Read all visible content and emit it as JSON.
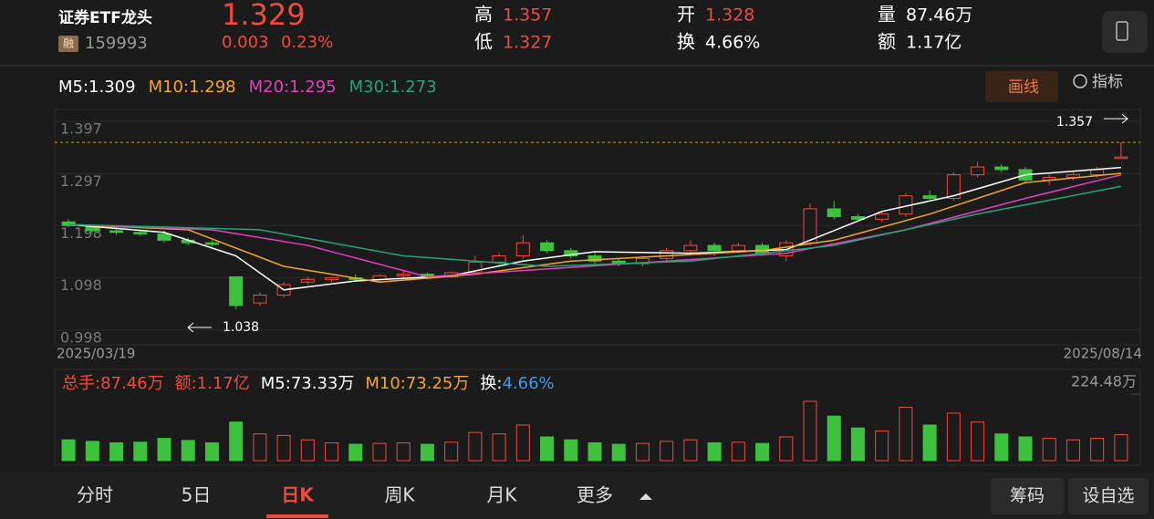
{
  "header": {
    "name": "证券ETF龙头",
    "tag": "融",
    "code": "159993",
    "price": "1.329",
    "change": "0.003",
    "change_pct": "0.23%",
    "stats": [
      {
        "label": "高",
        "value": "1.357",
        "color": "#f04a3c"
      },
      {
        "label": "低",
        "value": "1.327",
        "color": "#f04a3c"
      },
      {
        "label": "开",
        "value": "1.328",
        "color": "#f04a3c"
      },
      {
        "label": "换",
        "value": "4.66%",
        "color": "#ffffff"
      },
      {
        "label": "量",
        "value": "87.46万",
        "color": "#ffffff"
      },
      {
        "label": "额",
        "value": "1.17亿",
        "color": "#ffffff"
      }
    ]
  },
  "toolbar": [
    "画线",
    "指标"
  ],
  "chart_data": {
    "type": "candlestick",
    "ylim": [
      0.97,
      1.42
    ],
    "yticks": [
      0.998,
      1.098,
      1.198,
      1.297,
      1.397
    ],
    "x_labels": [
      "2025/03/19",
      "2025/08/14"
    ],
    "high_mark": 1.357,
    "low_mark": 1.038,
    "candles": [
      [
        1.205,
        1.21,
        1.195,
        1.198
      ],
      [
        1.198,
        1.2,
        1.185,
        1.188
      ],
      [
        1.188,
        1.195,
        1.18,
        1.185
      ],
      [
        1.185,
        1.19,
        1.178,
        1.182
      ],
      [
        1.182,
        1.188,
        1.165,
        1.17
      ],
      [
        1.17,
        1.175,
        1.16,
        1.165
      ],
      [
        1.165,
        1.17,
        1.158,
        1.162
      ],
      [
        1.1,
        1.1,
        1.038,
        1.045
      ],
      [
        1.05,
        1.07,
        1.045,
        1.065
      ],
      [
        1.065,
        1.09,
        1.06,
        1.085
      ],
      [
        1.09,
        1.1,
        1.085,
        1.095
      ],
      [
        1.095,
        1.1,
        1.09,
        1.098
      ],
      [
        1.098,
        1.105,
        1.09,
        1.095
      ],
      [
        1.095,
        1.105,
        1.09,
        1.102
      ],
      [
        1.102,
        1.11,
        1.098,
        1.105
      ],
      [
        1.105,
        1.108,
        1.095,
        1.1
      ],
      [
        1.1,
        1.11,
        1.098,
        1.108
      ],
      [
        1.108,
        1.14,
        1.105,
        1.128
      ],
      [
        1.128,
        1.145,
        1.12,
        1.14
      ],
      [
        1.14,
        1.18,
        1.135,
        1.165
      ],
      [
        1.165,
        1.17,
        1.145,
        1.15
      ],
      [
        1.15,
        1.155,
        1.135,
        1.14
      ],
      [
        1.14,
        1.145,
        1.125,
        1.13
      ],
      [
        1.13,
        1.135,
        1.12,
        1.125
      ],
      [
        1.125,
        1.14,
        1.12,
        1.135
      ],
      [
        1.135,
        1.155,
        1.13,
        1.15
      ],
      [
        1.15,
        1.17,
        1.145,
        1.16
      ],
      [
        1.16,
        1.165,
        1.14,
        1.15
      ],
      [
        1.15,
        1.165,
        1.145,
        1.16
      ],
      [
        1.16,
        1.165,
        1.14,
        1.145
      ],
      [
        1.14,
        1.17,
        1.13,
        1.165
      ],
      [
        1.165,
        1.24,
        1.16,
        1.23
      ],
      [
        1.23,
        1.245,
        1.21,
        1.215
      ],
      [
        1.215,
        1.22,
        1.205,
        1.21
      ],
      [
        1.21,
        1.225,
        1.205,
        1.22
      ],
      [
        1.22,
        1.26,
        1.215,
        1.255
      ],
      [
        1.255,
        1.265,
        1.245,
        1.25
      ],
      [
        1.25,
        1.3,
        1.245,
        1.295
      ],
      [
        1.295,
        1.32,
        1.29,
        1.31
      ],
      [
        1.31,
        1.315,
        1.3,
        1.305
      ],
      [
        1.305,
        1.31,
        1.28,
        1.285
      ],
      [
        1.285,
        1.295,
        1.275,
        1.29
      ],
      [
        1.29,
        1.3,
        1.285,
        1.295
      ],
      [
        1.295,
        1.31,
        1.29,
        1.305
      ],
      [
        1.328,
        1.357,
        1.327,
        1.329
      ]
    ],
    "series": [
      {
        "name": "M5:1.309",
        "color": "#ffffff",
        "x": [
          0,
          4,
          7,
          9,
          12,
          16,
          19,
          22,
          26,
          30,
          31,
          34,
          37,
          40,
          44
        ],
        "values": [
          1.2,
          1.185,
          1.14,
          1.075,
          1.092,
          1.102,
          1.13,
          1.148,
          1.145,
          1.152,
          1.17,
          1.225,
          1.255,
          1.295,
          1.309
        ]
      },
      {
        "name": "M10:1.298",
        "color": "#f5a623",
        "x": [
          0,
          5,
          9,
          13,
          17,
          21,
          25,
          29,
          32,
          36,
          40,
          44
        ],
        "values": [
          1.2,
          1.19,
          1.12,
          1.09,
          1.105,
          1.13,
          1.14,
          1.15,
          1.17,
          1.22,
          1.28,
          1.298
        ]
      },
      {
        "name": "M20:1.295",
        "color": "#e83fc0",
        "x": [
          0,
          6,
          10,
          15,
          20,
          25,
          30,
          35,
          40,
          44
        ],
        "values": [
          1.2,
          1.19,
          1.16,
          1.1,
          1.115,
          1.13,
          1.145,
          1.19,
          1.25,
          1.295
        ]
      },
      {
        "name": "M30:1.273",
        "color": "#1fa774",
        "x": [
          0,
          8,
          14,
          20,
          26,
          32,
          38,
          44
        ],
        "values": [
          1.2,
          1.19,
          1.14,
          1.12,
          1.13,
          1.16,
          1.22,
          1.273
        ]
      }
    ],
    "volume": {
      "values": [
        70,
        65,
        60,
        62,
        75,
        68,
        60,
        130,
        90,
        85,
        70,
        60,
        55,
        58,
        60,
        55,
        62,
        95,
        90,
        120,
        80,
        70,
        60,
        55,
        58,
        65,
        70,
        60,
        62,
        58,
        80,
        200,
        150,
        110,
        100,
        180,
        120,
        160,
        130,
        90,
        80,
        75,
        70,
        75,
        87.46
      ],
      "ylim": [
        0,
        224.48
      ],
      "yticks": [
        {
          "value": 224.48,
          "label": "224.48万"
        }
      ],
      "legend": [
        {
          "text": "总手:87.46万",
          "color": "#f04a3c"
        },
        {
          "text": "额:1.17亿",
          "color": "#f04a3c"
        },
        {
          "text": "M5:73.33万",
          "color": "#ffffff"
        },
        {
          "text": "M10:73.25万",
          "color": "#f5a623"
        },
        {
          "text": "换:",
          "color": "#ffffff"
        },
        {
          "text": "4.66%",
          "color": "#3d9ae8"
        }
      ]
    }
  },
  "tabs": {
    "items": [
      "分时",
      "5日",
      "日K",
      "周K",
      "月K",
      "更多"
    ],
    "selected": 2
  },
  "buttons": [
    "筹码",
    "设自选"
  ]
}
